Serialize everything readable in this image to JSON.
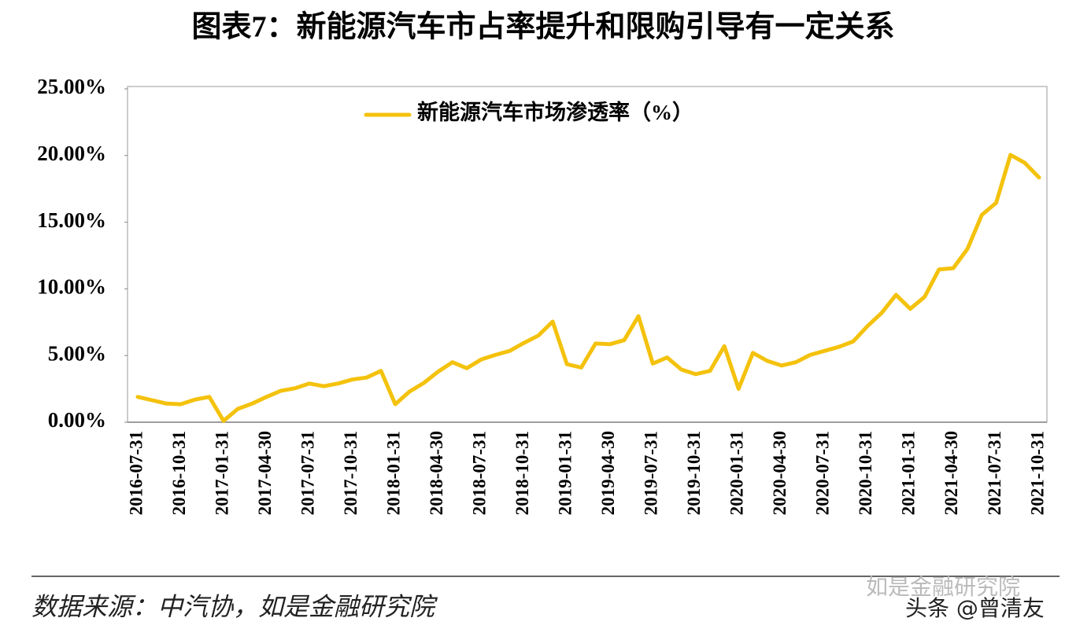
{
  "chart_data": {
    "type": "line",
    "title": "图表7：新能源汽车市占率提升和限购引导有一定关系",
    "source": "数据来源：中汽协，如是金融研究院",
    "watermarks": [
      "如是金融研究院",
      "头条 @曾清友"
    ],
    "categories": [
      "2016-07-31",
      null,
      null,
      "2016-10-31",
      null,
      null,
      "2017-01-31",
      null,
      null,
      "2017-04-30",
      null,
      null,
      "2017-07-31",
      null,
      null,
      "2017-10-31",
      null,
      null,
      "2018-01-31",
      null,
      null,
      "2018-04-30",
      null,
      null,
      "2018-07-31",
      null,
      null,
      "2018-10-31",
      null,
      null,
      "2019-01-31",
      null,
      null,
      "2019-04-30",
      null,
      null,
      "2019-07-31",
      null,
      null,
      "2019-10-31",
      null,
      null,
      "2020-01-31",
      null,
      null,
      "2020-04-30",
      null,
      null,
      "2020-07-31",
      null,
      null,
      "2020-10-31",
      null,
      null,
      "2021-01-31",
      null,
      null,
      "2021-04-30",
      null,
      null,
      "2021-07-31",
      null,
      null,
      "2021-10-31"
    ],
    "series": [
      {
        "name": "新能源汽车市场渗透率（%）",
        "color": "#F4C20D",
        "values": [
          1.9,
          1.65,
          1.4,
          1.35,
          1.7,
          1.9,
          0.1,
          1.0,
          1.4,
          1.9,
          2.35,
          2.55,
          2.9,
          2.7,
          2.9,
          3.2,
          3.35,
          3.85,
          1.35,
          2.3,
          2.95,
          3.8,
          4.5,
          4.05,
          4.7,
          5.05,
          5.35,
          5.95,
          6.5,
          7.55,
          4.35,
          4.1,
          5.9,
          5.85,
          6.15,
          7.95,
          4.4,
          4.85,
          3.95,
          3.6,
          3.85,
          5.7,
          2.5,
          5.2,
          4.6,
          4.25,
          4.5,
          5.05,
          5.35,
          5.65,
          6.05,
          7.2,
          8.2,
          9.55,
          8.5,
          9.4,
          11.45,
          11.55,
          13.0,
          15.55,
          16.45,
          20.05,
          19.45,
          18.35
        ]
      }
    ],
    "ylim": [
      0,
      25
    ],
    "yticks": [
      {
        "value": 0,
        "label": "0.00%"
      },
      {
        "value": 5,
        "label": "5.00%"
      },
      {
        "value": 10,
        "label": "10.00%"
      },
      {
        "value": 15,
        "label": "15.00%"
      },
      {
        "value": 20,
        "label": "20.00%"
      },
      {
        "value": 25,
        "label": "25.00%"
      }
    ],
    "grid": false,
    "legend": "top"
  }
}
